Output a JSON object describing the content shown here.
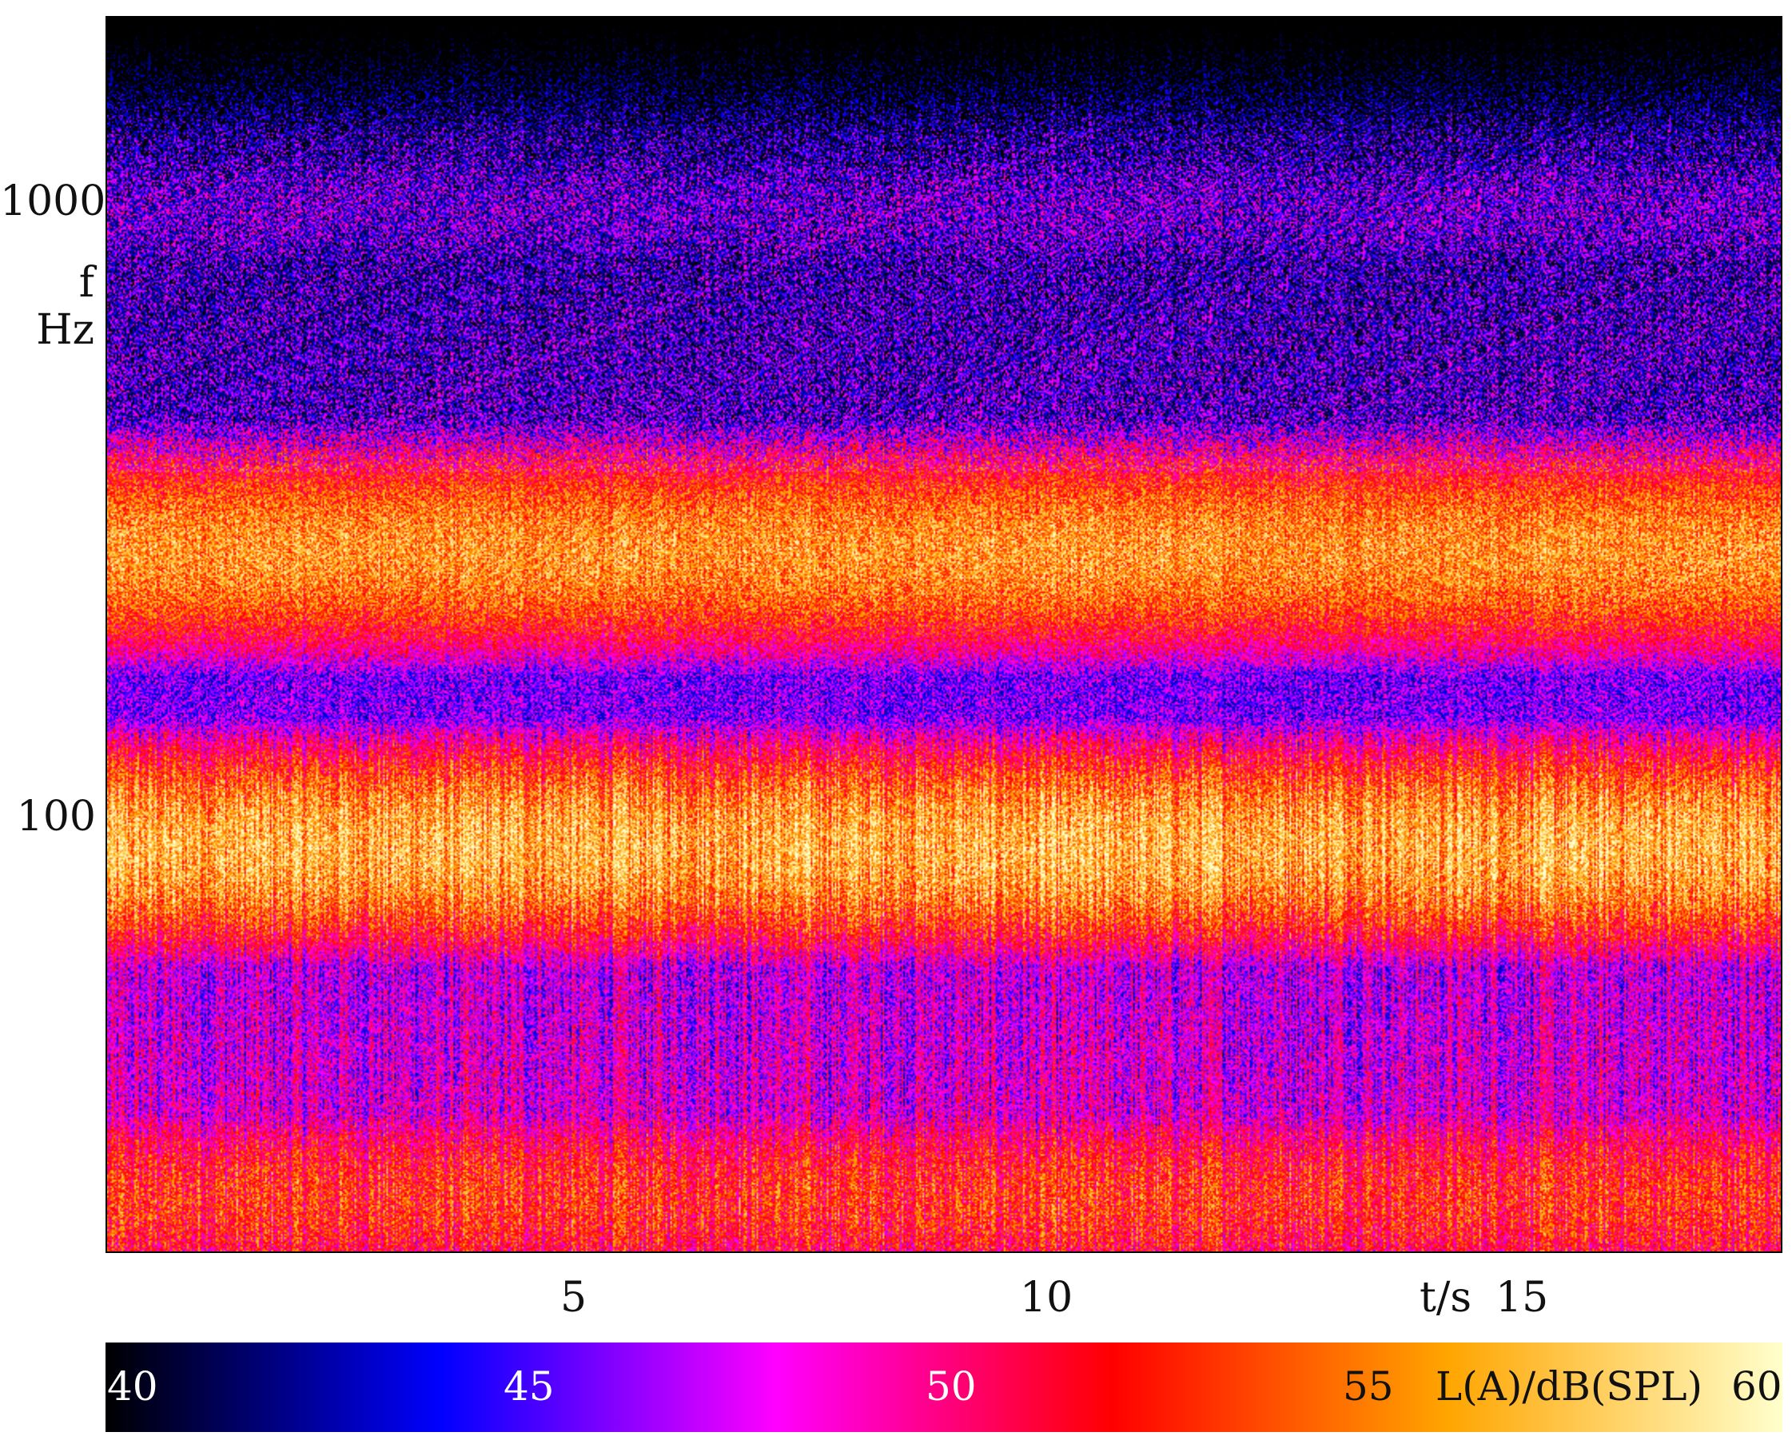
{
  "chart_data": {
    "type": "heatmap",
    "x_axis": {
      "label": "t/s",
      "ticks": [
        "5",
        "10",
        "15"
      ],
      "tick_values": [
        5,
        10,
        15
      ],
      "range": [
        0,
        18
      ]
    },
    "y_axis": {
      "label_line1": "f",
      "label_line2": "Hz",
      "scale": "log",
      "ticks": [
        "100",
        "1000"
      ],
      "tick_values": [
        100,
        1000
      ],
      "range": [
        25,
        2000
      ]
    },
    "colorbar": {
      "label": "L(A)/dB(SPL)",
      "ticks": [
        "40",
        "45",
        "50",
        "55",
        "60"
      ],
      "tick_values": [
        40,
        45,
        50,
        55,
        60
      ],
      "range": [
        40,
        60
      ],
      "colormap": [
        "#000000",
        "#0000ff",
        "#ff00ff",
        "#ff0000",
        "#ffa500",
        "#ffffcc"
      ]
    },
    "bands": [
      {
        "freq_hz": 300,
        "level_db": 56
      },
      {
        "freq_hz": 105,
        "level_db": 57
      },
      {
        "freq_hz": 30,
        "level_db": 53
      },
      {
        "freq_hz": 1000,
        "level_db": 45
      }
    ],
    "grid": false
  }
}
